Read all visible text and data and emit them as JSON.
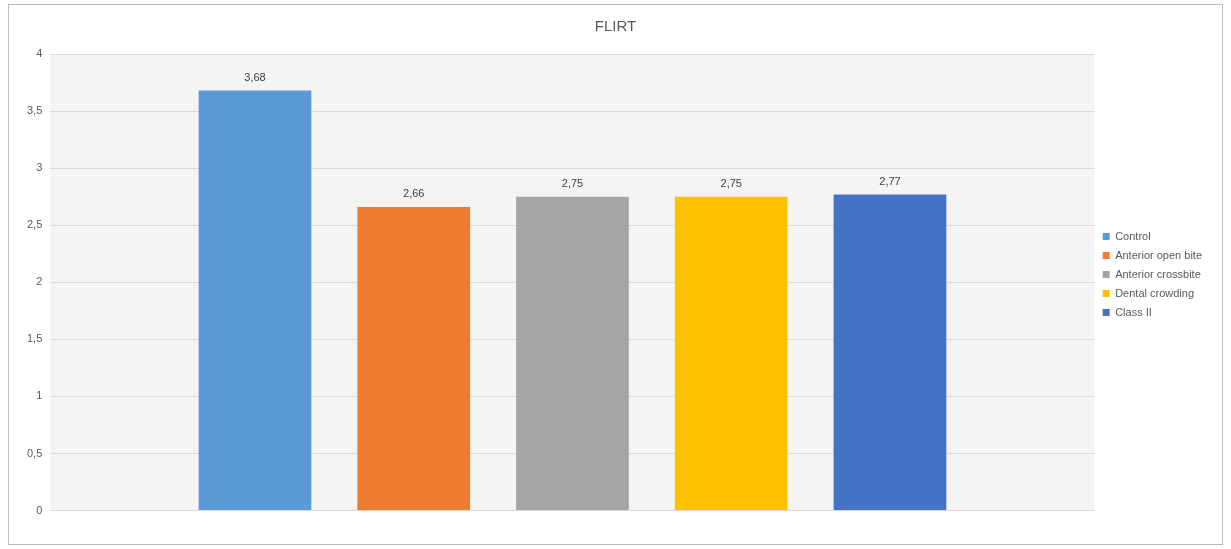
{
  "chart_data": {
    "type": "bar",
    "title": "FLIRT",
    "categories": [
      null
    ],
    "series": [
      {
        "name": "Control",
        "color": "#5b9bd5",
        "values": [
          3.68
        ],
        "value_labels": [
          "3,68"
        ]
      },
      {
        "name": "Anterior open bite",
        "color": "#ed7d31",
        "values": [
          2.66
        ],
        "value_labels": [
          "2,66"
        ]
      },
      {
        "name": "Anterior crossbite",
        "color": "#a5a5a5",
        "values": [
          2.75
        ],
        "value_labels": [
          "2,75"
        ]
      },
      {
        "name": "Dental crowding",
        "color": "#ffc000",
        "values": [
          2.75
        ],
        "value_labels": [
          "2,75"
        ]
      },
      {
        "name": "Class II",
        "color": "#4472c4",
        "values": [
          2.77
        ],
        "value_labels": [
          "2,77"
        ]
      }
    ],
    "ylim": [
      0,
      4
    ],
    "yticks": [
      0,
      {
        "value": 0.5,
        "label": "0,5"
      },
      1,
      {
        "value": 1.5,
        "label": "1,5"
      },
      2,
      {
        "value": 2.5,
        "label": "2,5"
      },
      3,
      {
        "value": 3.5,
        "label": "3,5"
      },
      4
    ],
    "grid": "y",
    "legend": "right"
  }
}
